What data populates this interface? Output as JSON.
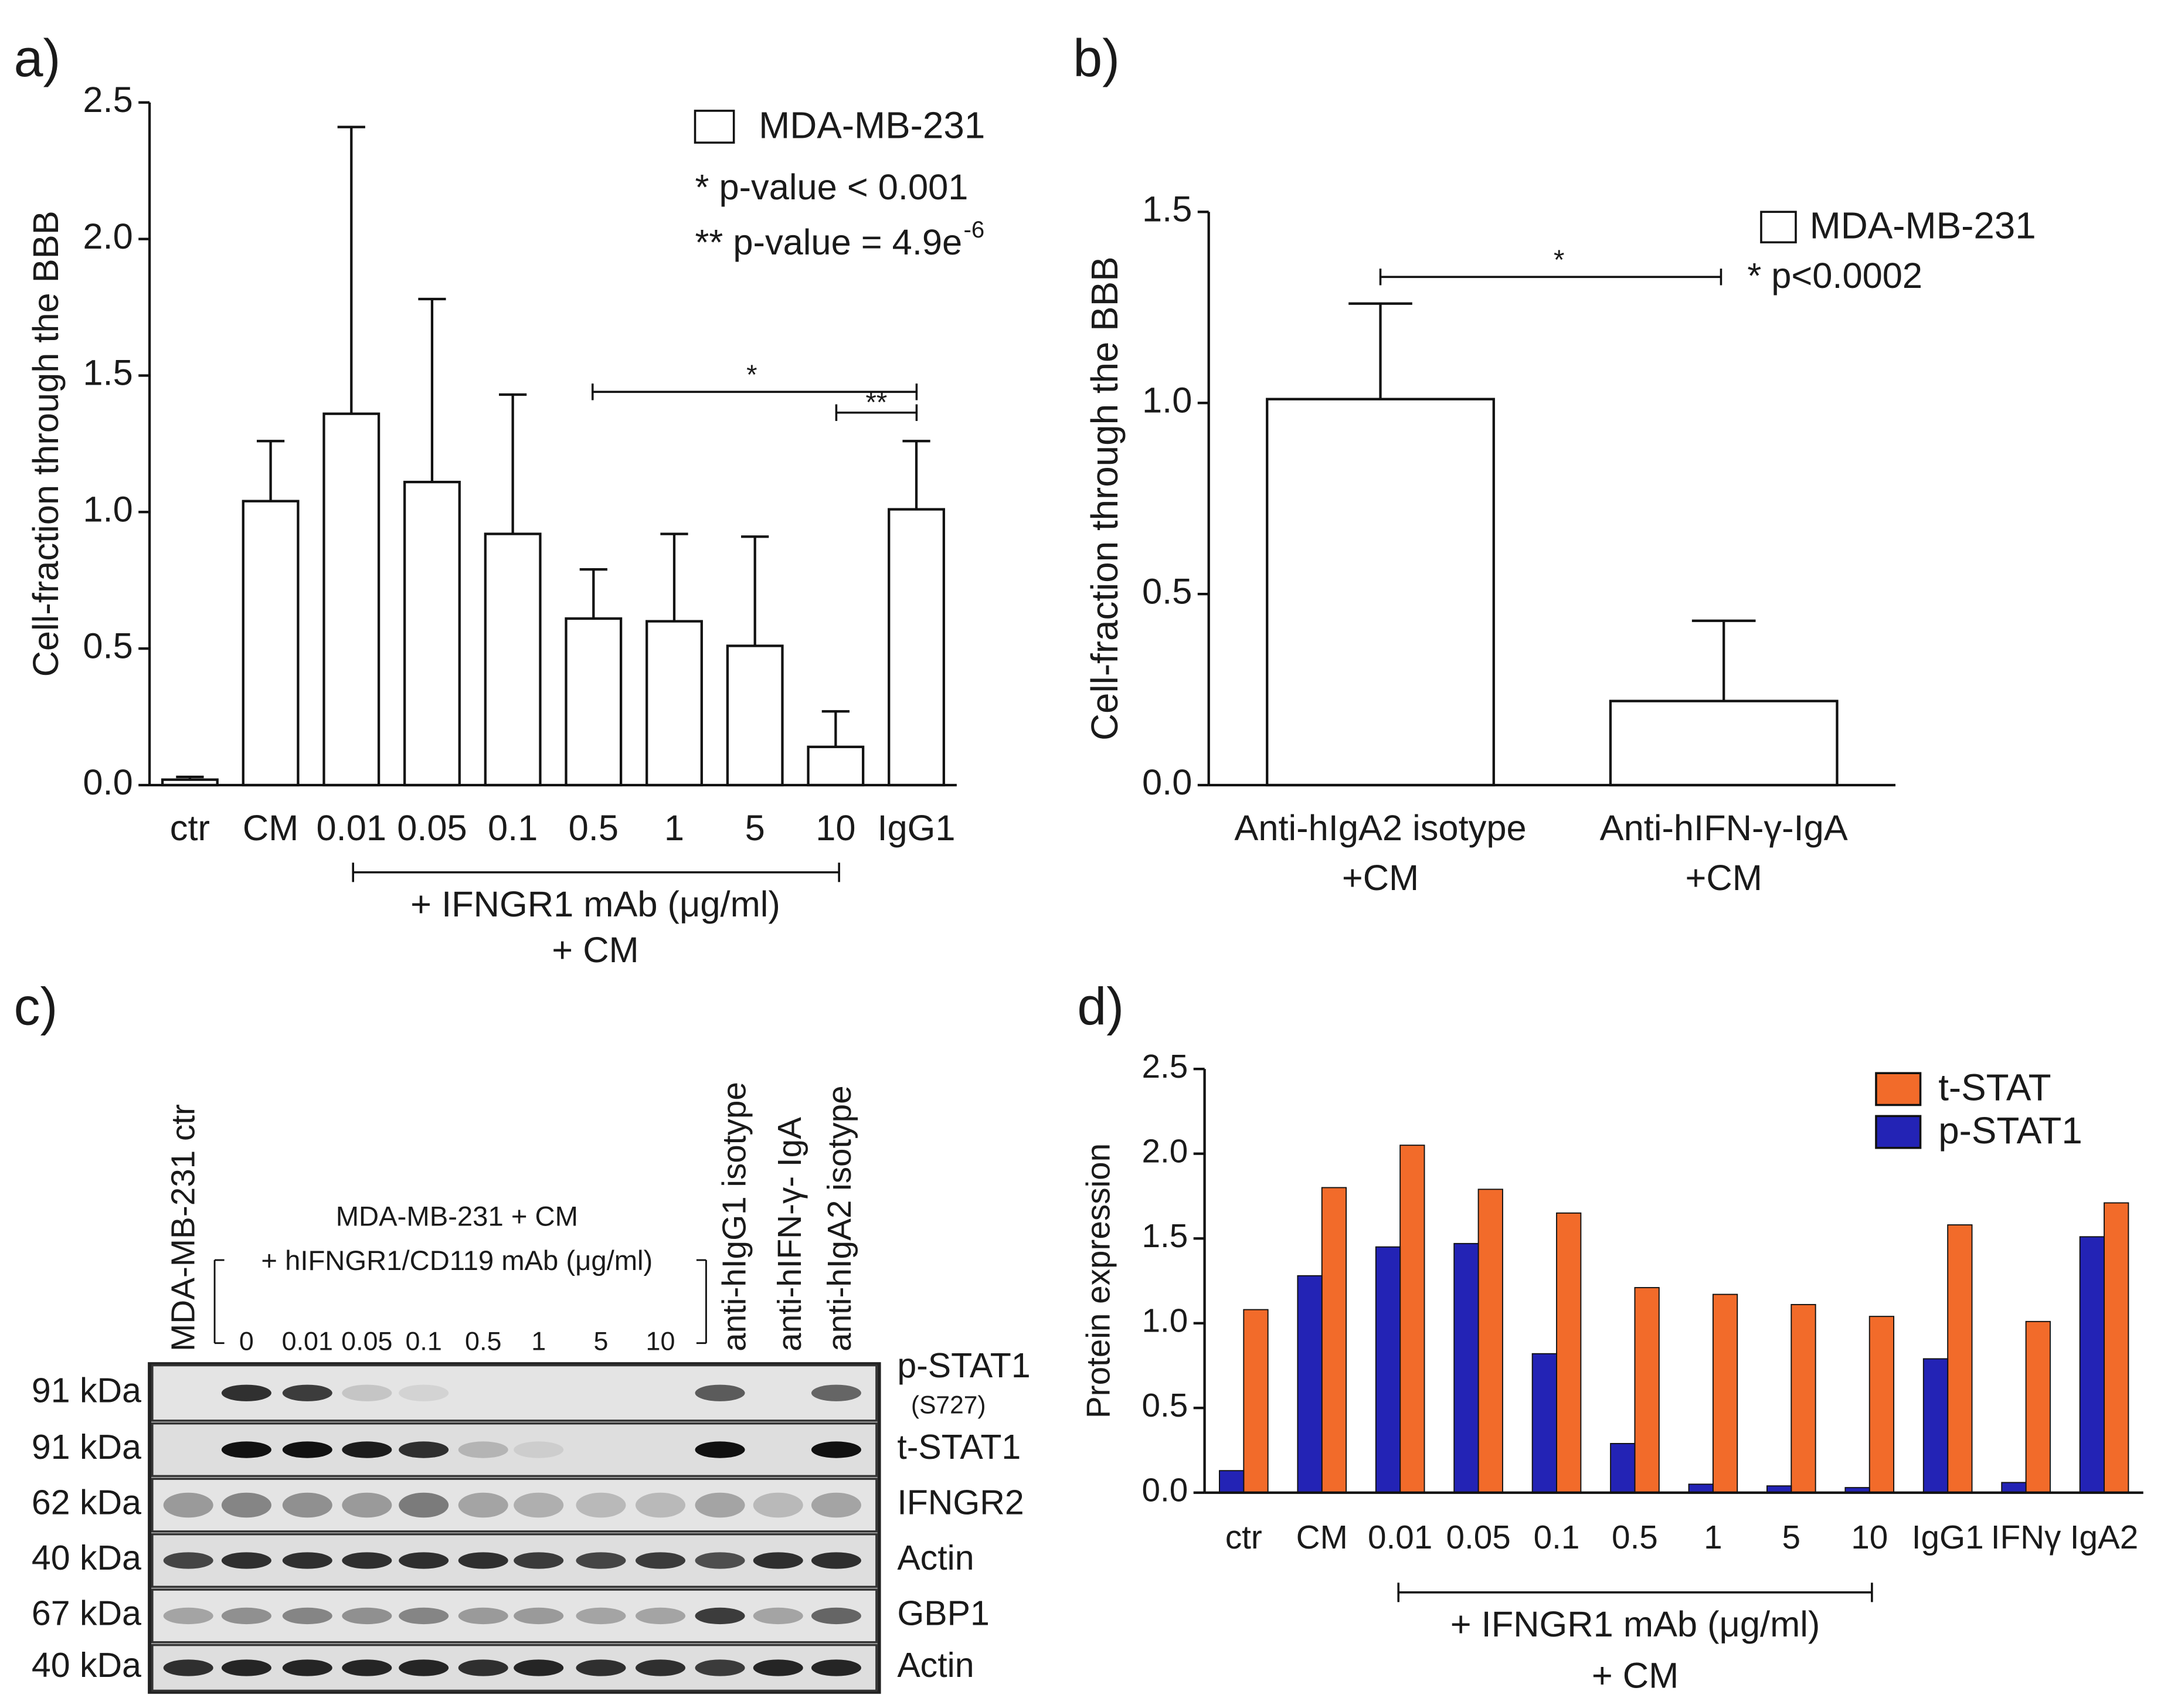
{
  "chart_data": [
    {
      "type": "bar",
      "panel_label": "a)",
      "ylabel": "Cell-fraction through the BBB",
      "categories": [
        "ctr",
        "CM",
        "0.01",
        "0.05",
        "0.1",
        "0.5",
        "1",
        "5",
        "10",
        "IgG1"
      ],
      "series": [
        {
          "name": "MDA-MB-231",
          "color": "#ffffff",
          "values": [
            0.02,
            1.04,
            1.36,
            1.11,
            0.92,
            0.61,
            0.6,
            0.51,
            0.14,
            1.01
          ],
          "errors": [
            0.01,
            0.22,
            1.05,
            0.67,
            0.51,
            0.18,
            0.32,
            0.4,
            0.13,
            0.25
          ]
        }
      ],
      "ylim": [
        0,
        2.5
      ],
      "yticks": [
        {
          "value": 0,
          "label": "0.0"
        },
        0.5,
        {
          "value": 1,
          "label": "1.0"
        },
        1.5,
        {
          "value": 2,
          "label": "2.0"
        },
        2.5
      ],
      "grid": false,
      "annotations": [
        {
          "text": "* p-value < 0.001"
        },
        {
          "text": "** p-value = 4.9e",
          "superscript": "-6"
        }
      ],
      "significance": [
        "*",
        "**"
      ],
      "group_label": [
        "+ IFNGR1 mAb (μg/ml)",
        "+ CM"
      ]
    },
    {
      "type": "bar",
      "panel_label": "b)",
      "ylabel": "Cell-fraction through the BBB",
      "categories": [
        "Anti-hIgA2 isotype",
        "Anti-hIFN-γ-IgA"
      ],
      "category_sublabels": [
        "+CM",
        "+CM"
      ],
      "series": [
        {
          "name": "MDA-MB-231",
          "color": "#ffffff",
          "values": [
            1.01,
            0.22
          ],
          "errors": [
            0.25,
            0.21
          ]
        }
      ],
      "ylim": [
        0,
        1.5
      ],
      "yticks": [
        {
          "value": 0,
          "label": "0.0"
        },
        0.5,
        {
          "value": 1,
          "label": "1.0"
        },
        1.5
      ],
      "grid": false,
      "annotations": [
        {
          "text": "* p<0.0002"
        }
      ],
      "significance": [
        "*"
      ]
    },
    {
      "type": "bar",
      "panel_label": "d)",
      "ylabel": "Protein expression",
      "categories": [
        "ctr",
        "CM",
        "0.01",
        "0.05",
        "0.1",
        "0.5",
        "1",
        "5",
        "10",
        "IgG1",
        "IFNγ",
        "IgA2"
      ],
      "series": [
        {
          "name": "t-STAT",
          "color": "#f26b2a",
          "values": [
            1.08,
            1.8,
            2.05,
            1.79,
            1.65,
            1.21,
            1.17,
            1.11,
            1.04,
            1.58,
            1.01,
            1.71
          ]
        },
        {
          "name": "p-STAT1",
          "color": "#2323b5",
          "values": [
            0.13,
            1.28,
            1.45,
            1.47,
            0.82,
            0.29,
            0.05,
            0.04,
            0.03,
            0.79,
            0.06,
            1.51
          ]
        }
      ],
      "ylim": [
        0,
        2.5
      ],
      "yticks": [
        {
          "value": 0,
          "label": "0.0"
        },
        0.5,
        {
          "value": 1,
          "label": "1.0"
        },
        1.5,
        {
          "value": 2,
          "label": "2.0"
        },
        2.5
      ],
      "grid": false,
      "group_label": [
        "+ IFNGR1 mAb (μg/ml)",
        "+ CM"
      ]
    }
  ],
  "blot": {
    "panel_label": "c)",
    "control_label": "MDA-MB-231 ctr",
    "group_title": "MDA-MB-231 + CM",
    "group_subtitle": "+ hIFNGR1/CD119 mAb (μg/ml)",
    "doses": [
      "0",
      "0.01",
      "0.05",
      "0.1",
      "0.5",
      "1",
      "5",
      "10"
    ],
    "other_lanes": [
      "anti-hIgG1 isotype",
      "anti-hIFN-γ- IgA",
      "anti-hIgA2 isotype"
    ],
    "rows": [
      {
        "size": "91 kDa",
        "protein": "p-STAT1",
        "site": "(S727)"
      },
      {
        "size": "91 kDa",
        "protein": "t-STAT1"
      },
      {
        "size": "62 kDa",
        "protein": "IFNGR2"
      },
      {
        "size": "40 kDa",
        "protein": "Actin"
      },
      {
        "size": "67 kDa",
        "protein": "GBP1"
      },
      {
        "size": "40 kDa",
        "protein": "Actin"
      }
    ]
  }
}
